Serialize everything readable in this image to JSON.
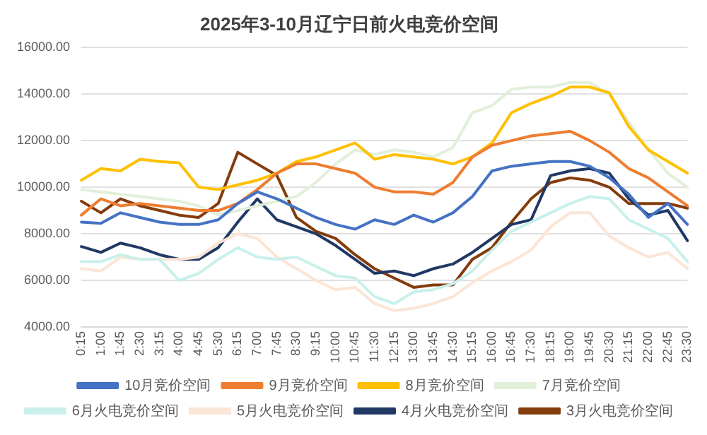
{
  "chart_data": {
    "type": "line",
    "title": "2025年3-10月辽宁日前火电竞价空间",
    "categories": [
      "0:15",
      "1:00",
      "1:45",
      "2:30",
      "3:15",
      "4:00",
      "4:45",
      "5:30",
      "6:15",
      "7:00",
      "7:45",
      "8:30",
      "9:15",
      "10:00",
      "10:45",
      "11:30",
      "12:15",
      "13:00",
      "13:45",
      "14:30",
      "15:15",
      "16:00",
      "16:45",
      "17:30",
      "18:15",
      "19:00",
      "19:45",
      "20:30",
      "21:15",
      "22:00",
      "22:45",
      "23:30"
    ],
    "ylim": [
      4000,
      16000
    ],
    "yticks": [
      {
        "value": 4000,
        "label": "4000.00"
      },
      {
        "value": 6000,
        "label": "6000.00"
      },
      {
        "value": 8000,
        "label": "8000.00"
      },
      {
        "value": 10000,
        "label": "10000.00"
      },
      {
        "value": 12000,
        "label": "12000.00"
      },
      {
        "value": 14000,
        "label": "14000.00"
      },
      {
        "value": 16000,
        "label": "16000.00"
      }
    ],
    "grid": "y",
    "legend": "bottom",
    "marker": "none",
    "line_style": "solid",
    "series": [
      {
        "name": "10月竞价空间",
        "color": "#4472c4",
        "values": [
          8500,
          8450,
          8900,
          8700,
          8500,
          8400,
          8400,
          8600,
          9300,
          9800,
          9500,
          9100,
          8700,
          8400,
          8200,
          8600,
          8400,
          8800,
          8500,
          8900,
          9600,
          10700,
          10900,
          11000,
          11100,
          11100,
          10900,
          10400,
          9700,
          8700,
          9300,
          8400
        ]
      },
      {
        "name": "9月竞价空间",
        "color": "#ed7d31",
        "values": [
          8800,
          9500,
          9200,
          9300,
          9200,
          9100,
          9000,
          9000,
          9300,
          9900,
          10600,
          11000,
          11000,
          10800,
          10600,
          10000,
          9800,
          9800,
          9700,
          10200,
          11300,
          11800,
          12000,
          12200,
          12300,
          12400,
          12000,
          11500,
          10800,
          10400,
          9800,
          9200
        ]
      },
      {
        "name": "8月竞价空间",
        "color": "#ffc000",
        "values": [
          10300,
          10800,
          10700,
          11200,
          11100,
          11050,
          10000,
          9900,
          10100,
          10300,
          10600,
          11100,
          11300,
          11600,
          11900,
          11200,
          11400,
          11300,
          11200,
          11000,
          11300,
          11900,
          13200,
          13600,
          13900,
          14300,
          14300,
          14050,
          12600,
          11600,
          11100,
          10600
        ]
      },
      {
        "name": "7月竞价空间",
        "color": "#e2efda",
        "values": [
          9900,
          9800,
          9700,
          9600,
          9500,
          9400,
          9200,
          8800,
          9000,
          9200,
          9400,
          9600,
          10200,
          11000,
          11600,
          11400,
          11600,
          11500,
          11300,
          11700,
          13200,
          13500,
          14200,
          14300,
          14300,
          14500,
          14500,
          14000,
          12800,
          11600,
          10600,
          10000
        ]
      },
      {
        "name": "6月火电竞价空间",
        "color": "#c9f0ea",
        "values": [
          6800,
          6800,
          7100,
          6900,
          6900,
          6000,
          6300,
          6900,
          7400,
          7000,
          6900,
          7000,
          6600,
          6200,
          6100,
          5300,
          5000,
          5500,
          5600,
          5850,
          6400,
          7300,
          8100,
          8500,
          8900,
          9300,
          9600,
          9500,
          8600,
          8200,
          7800,
          6800
        ]
      },
      {
        "name": "5月火电竞价空间",
        "color": "#fbe5d6",
        "values": [
          6500,
          6400,
          7000,
          6900,
          6900,
          6900,
          7000,
          7600,
          8000,
          7800,
          7000,
          6500,
          6000,
          5600,
          5700,
          5000,
          4700,
          4800,
          5000,
          5300,
          5900,
          6400,
          6800,
          7300,
          8300,
          8900,
          8900,
          7900,
          7400,
          7000,
          7200,
          6500
        ]
      },
      {
        "name": "4月火电竞价空间",
        "color": "#203864",
        "values": [
          7450,
          7200,
          7600,
          7400,
          7100,
          6900,
          6900,
          7400,
          8500,
          9500,
          8600,
          8300,
          8000,
          7500,
          6900,
          6300,
          6400,
          6200,
          6500,
          6700,
          7200,
          7800,
          8400,
          8600,
          10500,
          10700,
          10800,
          10600,
          9500,
          8800,
          9000,
          7700
        ]
      },
      {
        "name": "3月火电竞价空间",
        "color": "#843c0c",
        "values": [
          9400,
          8900,
          9500,
          9200,
          9000,
          8800,
          8700,
          9300,
          11500,
          11000,
          10500,
          8700,
          8100,
          7800,
          7100,
          6500,
          6100,
          5700,
          5800,
          5800,
          6900,
          7400,
          8500,
          9500,
          10200,
          10400,
          10300,
          10000,
          9300,
          9300,
          9300,
          9100
        ]
      }
    ]
  }
}
